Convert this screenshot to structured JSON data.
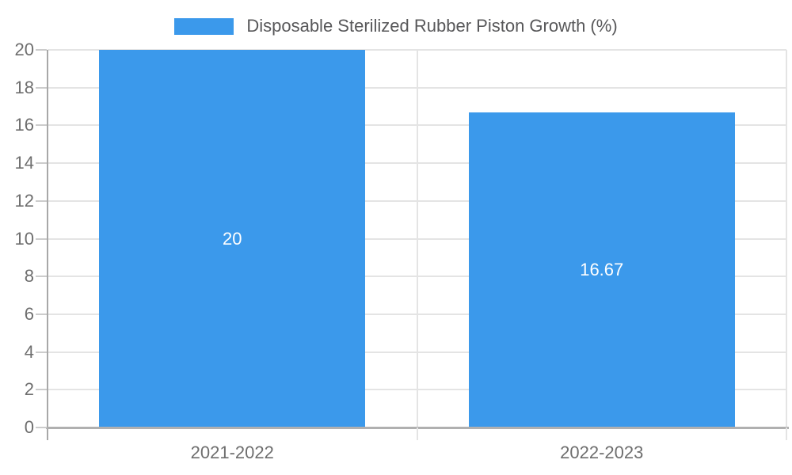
{
  "legend": {
    "label": "Disposable Sterilized Rubber Piston Growth (%)",
    "swatch_color": "#3b99eb"
  },
  "chart_data": {
    "type": "bar",
    "title": "Disposable Sterilized Rubber Piston Growth (%)",
    "categories": [
      "2021-2022",
      "2022-2023"
    ],
    "values": [
      20,
      16.67
    ],
    "value_labels": [
      "20",
      "16.67"
    ],
    "xlabel": "",
    "ylabel": "",
    "ylim": [
      0,
      20
    ],
    "yticks": [
      0,
      2,
      4,
      6,
      8,
      10,
      12,
      14,
      16,
      18,
      20
    ],
    "grid": true,
    "legend_position": "top-center",
    "bar_color": "#3b99eb",
    "bar_width_frac": 0.72
  },
  "colors": {
    "bar": "#3b99eb",
    "bar_label": "#ffffff",
    "grid": "#e4e4e4",
    "axis_x": "#b0b0b0",
    "axis_y": "#a8a8a8",
    "tick_mark": "#cccccc",
    "tick_text": "#6e6e6e",
    "legend_text": "#58585a",
    "background": "#ffffff"
  }
}
